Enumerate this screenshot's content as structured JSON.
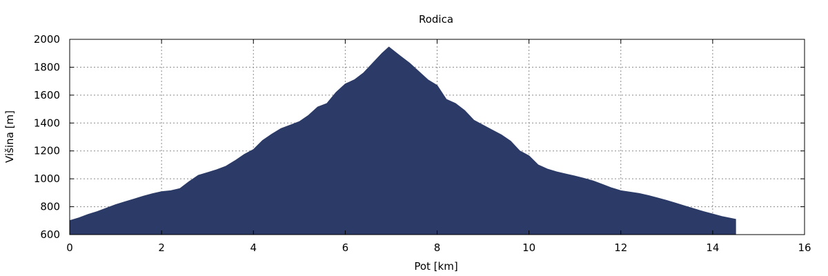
{
  "chart_data": {
    "type": "area",
    "title": "Rodica",
    "xlabel": "Pot [km]",
    "ylabel": "Višina [m]",
    "xlim": [
      0,
      16
    ],
    "ylim": [
      600,
      2000
    ],
    "xticks": [
      "0",
      "2",
      "4",
      "6",
      "8",
      "10",
      "12",
      "14",
      "16"
    ],
    "yticks": [
      "600",
      "800",
      "1000",
      "1200",
      "1400",
      "1600",
      "1800",
      "2000"
    ],
    "grid": true,
    "fill_color": "#2b3a66",
    "series": [
      {
        "x": [
          0,
          0.2,
          0.4,
          0.6,
          0.8,
          1.0,
          1.2,
          1.4,
          1.6,
          1.8,
          2.0,
          2.2,
          2.4,
          2.6,
          2.8,
          3.0,
          3.2,
          3.4,
          3.6,
          3.8,
          4.0,
          4.2,
          4.4,
          4.6,
          4.8,
          5.0,
          5.2,
          5.4,
          5.6,
          5.8,
          6.0,
          6.2,
          6.4,
          6.6,
          6.8,
          6.95,
          7.2,
          7.4,
          7.6,
          7.8,
          8.0,
          8.2,
          8.4,
          8.6,
          8.8,
          9.0,
          9.2,
          9.4,
          9.6,
          9.8,
          10.0,
          10.2,
          10.4,
          10.6,
          10.8,
          11.0,
          11.2,
          11.4,
          11.6,
          11.8,
          12.0,
          12.2,
          12.4,
          12.6,
          12.8,
          13.0,
          13.2,
          13.4,
          13.6,
          13.8,
          14.0,
          14.2,
          14.5
        ],
        "y": [
          700,
          720,
          745,
          765,
          790,
          815,
          835,
          855,
          875,
          893,
          908,
          915,
          930,
          980,
          1025,
          1045,
          1065,
          1090,
          1130,
          1175,
          1210,
          1275,
          1320,
          1360,
          1385,
          1410,
          1455,
          1515,
          1540,
          1620,
          1680,
          1710,
          1760,
          1830,
          1900,
          1945,
          1880,
          1830,
          1770,
          1710,
          1670,
          1570,
          1540,
          1490,
          1420,
          1385,
          1350,
          1315,
          1270,
          1200,
          1165,
          1100,
          1070,
          1050,
          1035,
          1020,
          1003,
          985,
          960,
          935,
          915,
          905,
          895,
          880,
          863,
          845,
          825,
          805,
          785,
          765,
          748,
          730,
          710
        ]
      }
    ]
  }
}
